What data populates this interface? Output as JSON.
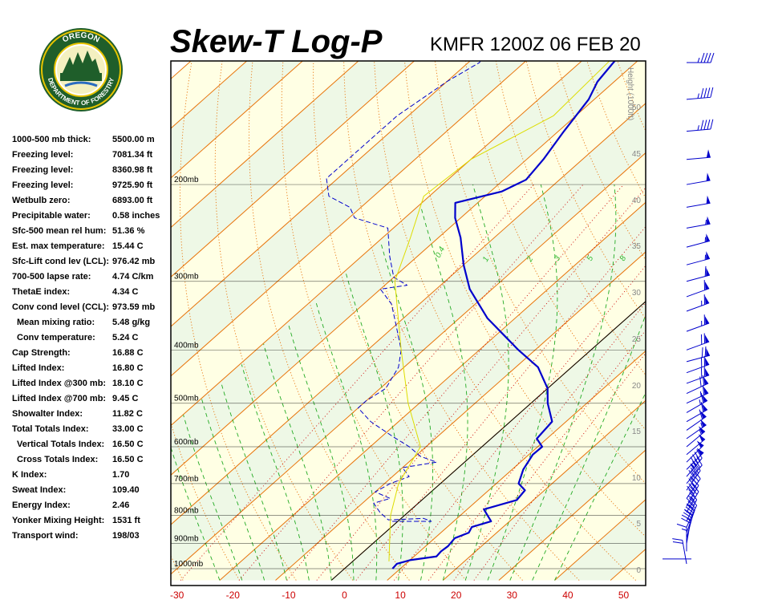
{
  "header": {
    "title": "Skew-T Log-P",
    "subtitle": "KMFR 1200Z 06 FEB 20"
  },
  "logo": {
    "top_text": "OREGON",
    "bottom_text": "DEPARTMENT OF FORESTRY",
    "colors": {
      "ring": "#1f5e2a",
      "accent": "#e8c400"
    }
  },
  "stats": [
    {
      "label": "1000-500 mb thick:",
      "value": "5500.00 m"
    },
    {
      "label": "Freezing level:",
      "value": "7081.34 ft"
    },
    {
      "label": "Freezing level:",
      "value": "8360.98 ft"
    },
    {
      "label": "Freezing level:",
      "value": "9725.90 ft"
    },
    {
      "label": "Wetbulb zero:",
      "value": "6893.00 ft"
    },
    {
      "label": "Precipitable water:",
      "value": "0.58 inches"
    },
    {
      "label": "Sfc-500 mean rel hum:",
      "value": "51.36 %"
    },
    {
      "label": "Est. max temperature:",
      "value": "15.44 C"
    },
    {
      "label": "Sfc-Lift cond lev (LCL):",
      "value": "976.42 mb"
    },
    {
      "label": "700-500 lapse rate:",
      "value": "4.74 C/km"
    },
    {
      "label": "ThetaE index:",
      "value": "4.34 C"
    },
    {
      "label": "Conv cond level (CCL):",
      "value": "973.59 mb"
    },
    {
      "label": "Mean mixing ratio:",
      "value": "5.48 g/kg",
      "indent": true
    },
    {
      "label": "Conv temperature:",
      "value": "5.24 C",
      "indent": true
    },
    {
      "label": "Cap Strength:",
      "value": "16.88 C"
    },
    {
      "label": "Lifted Index:",
      "value": "16.80 C"
    },
    {
      "label": "Lifted Index @300 mb:",
      "value": "18.10 C"
    },
    {
      "label": "Lifted Index @700 mb:",
      "value": "9.45 C"
    },
    {
      "label": "Showalter Index:",
      "value": "11.82 C"
    },
    {
      "label": "Total Totals Index:",
      "value": "33.00 C"
    },
    {
      "label": "Vertical Totals Index:",
      "value": "16.50 C",
      "indent": true
    },
    {
      "label": "Cross Totals Index:",
      "value": "16.50 C",
      "indent": true
    },
    {
      "label": "K Index:",
      "value": "1.70"
    },
    {
      "label": "Sweat Index:",
      "value": "109.40"
    },
    {
      "label": "Energy Index:",
      "value": "2.46"
    },
    {
      "label": "Yonker Mixing Height:",
      "value": "1531 ft"
    },
    {
      "label": "Transport wind:",
      "value": "198/03"
    }
  ],
  "chart_data": {
    "type": "line",
    "chart_kind": "skew-t log-p",
    "x_axis": {
      "ticks": [
        "-30",
        "-20",
        "-10",
        "0",
        "10",
        "20",
        "30",
        "40",
        "50"
      ],
      "range": [
        -30,
        50
      ],
      "unit": "C"
    },
    "pressure_levels": [
      {
        "label": "1000mb",
        "p": 1000
      },
      {
        "label": "900mb",
        "p": 900
      },
      {
        "label": "800mb",
        "p": 800
      },
      {
        "label": "700mb",
        "p": 700
      },
      {
        "label": "600mb",
        "p": 600
      },
      {
        "label": "500mb",
        "p": 500
      },
      {
        "label": "400mb",
        "p": 400
      },
      {
        "label": "300mb",
        "p": 300
      },
      {
        "label": "200mb",
        "p": 200
      }
    ],
    "height_axis": {
      "label": "Height (1000ft)",
      "ticks": [
        "0",
        "5",
        "10",
        "15",
        "20",
        "25",
        "30",
        "35",
        "40",
        "45",
        "50"
      ]
    },
    "mixing_ratio_labels": [
      "0.4",
      "1",
      "2",
      "3",
      "5",
      "8"
    ],
    "series": [
      {
        "role": "temperature",
        "color": "#0000cc",
        "style": "solid",
        "points": [
          [
            1000,
            8.6
          ],
          [
            980,
            8.4
          ],
          [
            965,
            10
          ],
          [
            950,
            14
          ],
          [
            930,
            13.8
          ],
          [
            910,
            14
          ],
          [
            880,
            13.6
          ],
          [
            860,
            15
          ],
          [
            840,
            14.4
          ],
          [
            820,
            16.7
          ],
          [
            780,
            13
          ],
          [
            750,
            17
          ],
          [
            720,
            16.5
          ],
          [
            700,
            14
          ],
          [
            660,
            12
          ],
          [
            620,
            10.7
          ],
          [
            600,
            10.8
          ],
          [
            580,
            8.2
          ],
          [
            540,
            7.5
          ],
          [
            500,
            3
          ],
          [
            470,
            0
          ],
          [
            430,
            -6
          ],
          [
            400,
            -13
          ],
          [
            350,
            -25
          ],
          [
            310,
            -34
          ],
          [
            280,
            -40
          ],
          [
            250,
            -46
          ],
          [
            230,
            -51
          ],
          [
            216,
            -54
          ],
          [
            206,
            -48
          ],
          [
            196,
            -46
          ],
          [
            180,
            -47
          ],
          [
            160,
            -49
          ],
          [
            140,
            -51
          ],
          [
            130,
            -53
          ],
          [
            120,
            -54
          ],
          [
            110,
            -55
          ],
          [
            100,
            -57
          ]
        ]
      },
      {
        "role": "dewpoint",
        "color": "#0000cc",
        "style": "dashed",
        "points": [
          [
            820,
            -1
          ],
          [
            820,
            6
          ],
          [
            810,
            4
          ],
          [
            815,
            -2
          ],
          [
            790,
            -5
          ],
          [
            760,
            -8
          ],
          [
            745,
            -6
          ],
          [
            735,
            -8
          ],
          [
            725,
            -10
          ],
          [
            700,
            -9
          ],
          [
            680,
            -7
          ],
          [
            655,
            -10
          ],
          [
            640,
            -5
          ],
          [
            625,
            -9
          ],
          [
            600,
            -13
          ],
          [
            575,
            -18
          ],
          [
            540,
            -25
          ],
          [
            510,
            -30
          ],
          [
            495,
            -30
          ],
          [
            470,
            -29
          ],
          [
            430,
            -31
          ],
          [
            400,
            -34
          ],
          [
            360,
            -40
          ],
          [
            330,
            -45
          ],
          [
            310,
            -50
          ],
          [
            305,
            -46
          ],
          [
            295,
            -50
          ],
          [
            270,
            -55
          ],
          [
            240,
            -61
          ],
          [
            230,
            -69
          ],
          [
            220,
            -72
          ],
          [
            210,
            -78
          ],
          [
            195,
            -82
          ],
          [
            170,
            -82
          ],
          [
            150,
            -82
          ],
          [
            130,
            -80
          ],
          [
            120,
            -78
          ],
          [
            100,
            -82
          ]
        ]
      },
      {
        "role": "parcel",
        "color": "#dddd00",
        "style": "solid",
        "points": [
          [
            970,
            6.5
          ],
          [
            900,
            3
          ],
          [
            800,
            -2.5
          ],
          [
            700,
            -7.5
          ],
          [
            600,
            -11
          ],
          [
            500,
            -22
          ],
          [
            400,
            -34
          ],
          [
            300,
            -49
          ],
          [
            250,
            -55
          ],
          [
            210,
            -61
          ],
          [
            180,
            -60
          ],
          [
            150,
            -54
          ],
          [
            120,
            -55
          ],
          [
            100,
            -57
          ]
        ]
      }
    ],
    "wind_barbs": [
      [
        980,
        170,
        20
      ],
      [
        930,
        180,
        15
      ],
      [
        900,
        190,
        20
      ],
      [
        880,
        195,
        25
      ],
      [
        860,
        200,
        30
      ],
      [
        840,
        205,
        30
      ],
      [
        820,
        205,
        35
      ],
      [
        790,
        210,
        35
      ],
      [
        770,
        210,
        40
      ],
      [
        745,
        215,
        40
      ],
      [
        720,
        215,
        45
      ],
      [
        700,
        220,
        45
      ],
      [
        680,
        220,
        45
      ],
      [
        660,
        225,
        50
      ],
      [
        640,
        225,
        50
      ],
      [
        620,
        230,
        50
      ],
      [
        600,
        230,
        55
      ],
      [
        580,
        235,
        55
      ],
      [
        560,
        235,
        60
      ],
      [
        540,
        240,
        60
      ],
      [
        520,
        240,
        65
      ],
      [
        500,
        245,
        65
      ],
      [
        480,
        245,
        70
      ],
      [
        460,
        250,
        70
      ],
      [
        440,
        250,
        70
      ],
      [
        420,
        255,
        70
      ],
      [
        400,
        250,
        70
      ],
      [
        370,
        250,
        65
      ],
      [
        340,
        250,
        65
      ],
      [
        320,
        250,
        60
      ],
      [
        300,
        255,
        60
      ],
      [
        280,
        255,
        55
      ],
      [
        260,
        255,
        55
      ],
      [
        240,
        260,
        55
      ],
      [
        220,
        260,
        50
      ],
      [
        200,
        260,
        50
      ],
      [
        180,
        265,
        50
      ],
      [
        160,
        265,
        45
      ],
      [
        140,
        265,
        45
      ],
      [
        120,
        270,
        45
      ]
    ]
  },
  "colors": {
    "dry_adiabat": "#e8740a",
    "isotherm": "#e8740a",
    "moist_adiabat": "#22aa22",
    "mixing_ratio": "#cc0000",
    "tick_label": "#cc0000",
    "height_label": "#888888",
    "isobar": "#000000",
    "band_yellow": "#ffffe4",
    "band_green": "#eef8e6"
  }
}
